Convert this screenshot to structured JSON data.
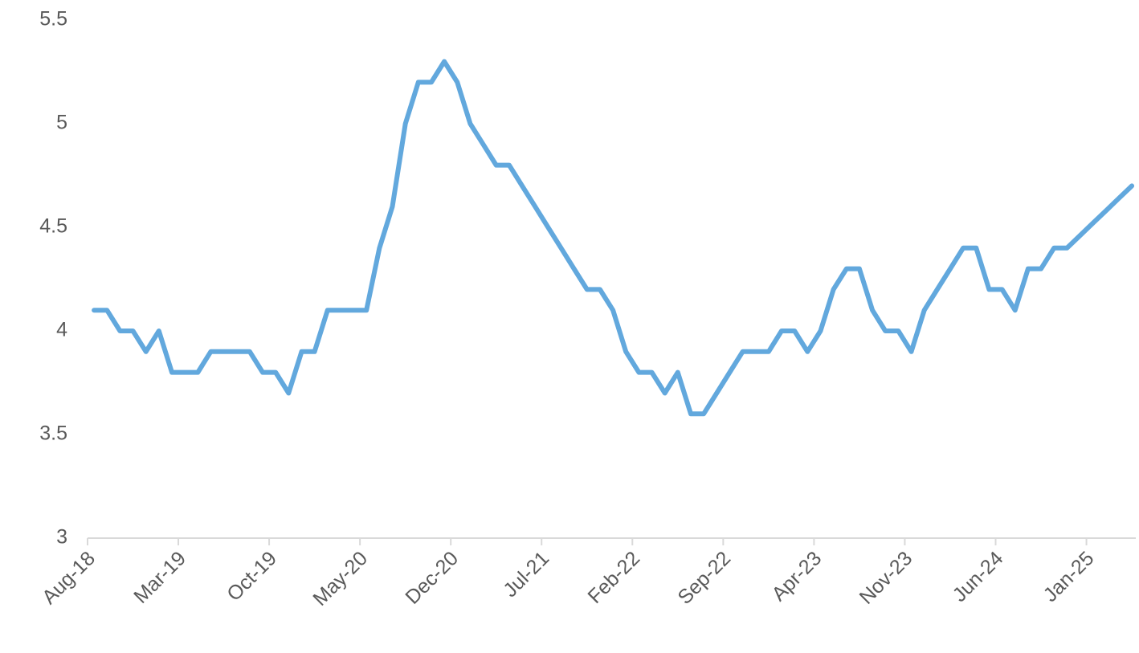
{
  "chart_data": {
    "type": "line",
    "categories": [
      "Aug-18",
      null,
      null,
      null,
      null,
      null,
      null,
      "Mar-19",
      null,
      null,
      null,
      null,
      null,
      null,
      "Oct-19",
      null,
      null,
      null,
      null,
      null,
      null,
      "May-20",
      null,
      null,
      null,
      null,
      null,
      null,
      "Dec-20",
      null,
      null,
      null,
      null,
      null,
      null,
      "Jul-21",
      null,
      null,
      null,
      null,
      null,
      null,
      "Feb-22",
      null,
      null,
      null,
      null,
      null,
      null,
      "Sep-22",
      null,
      null,
      null,
      null,
      null,
      null,
      "Apr-23",
      null,
      null,
      null,
      null,
      null,
      null,
      "Nov-23",
      null,
      null,
      null,
      null,
      null,
      null,
      "Jun-24",
      null,
      null,
      null,
      null,
      null,
      null,
      "Jan-25",
      null,
      null,
      null
    ],
    "series": [
      {
        "color": "#62a8dd",
        "values": [
          4.1,
          4.1,
          4.0,
          4.0,
          3.9,
          4.0,
          3.8,
          3.8,
          3.8,
          3.9,
          3.9,
          3.9,
          3.9,
          3.8,
          3.8,
          3.7,
          3.9,
          3.9,
          4.1,
          4.1,
          4.1,
          4.1,
          4.4,
          4.6,
          5.0,
          5.2,
          5.2,
          5.3,
          5.2,
          5.0,
          4.9,
          4.8,
          4.8,
          4.7,
          4.6,
          4.5,
          4.4,
          4.3,
          4.2,
          4.2,
          4.1,
          3.9,
          3.8,
          3.8,
          3.7,
          3.8,
          3.6,
          3.6,
          3.7,
          3.8,
          3.9,
          3.9,
          3.9,
          4.0,
          4.0,
          3.9,
          4.0,
          4.2,
          4.3,
          4.3,
          4.1,
          4.0,
          4.0,
          3.9,
          4.1,
          4.2,
          4.3,
          4.4,
          4.4,
          4.2,
          4.2,
          4.1,
          4.3,
          4.3,
          4.4,
          4.4,
          4.46,
          4.52,
          4.58,
          4.64,
          4.7
        ]
      }
    ],
    "ylim": [
      3,
      5.5
    ],
    "yticks": [
      3,
      3.5,
      4,
      4.5,
      5,
      5.5
    ],
    "grid": false
  }
}
